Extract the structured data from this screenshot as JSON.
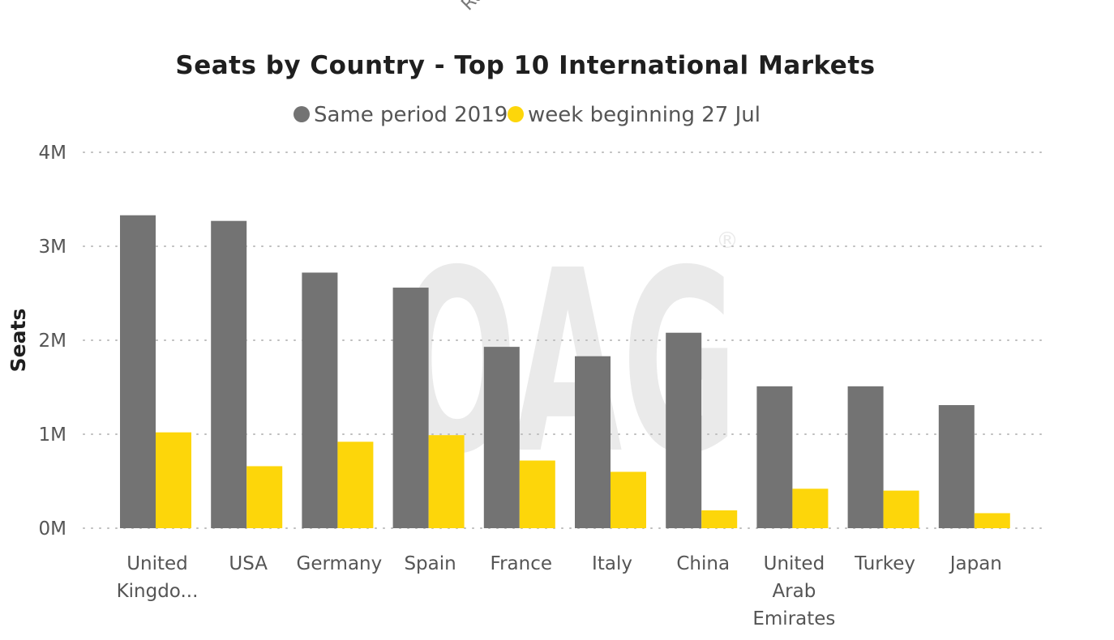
{
  "header": {
    "cut_off_text": "Ru"
  },
  "watermark": {
    "text": "OAG",
    "mark": "®"
  },
  "chart_data": {
    "type": "bar",
    "title": "Seats by Country - Top 10 International Markets",
    "xlabel": "",
    "ylabel": "Seats",
    "ylim": [
      0,
      4000000
    ],
    "yticks": [
      {
        "value": 0,
        "label": "0M"
      },
      {
        "value": 1000000,
        "label": "1M"
      },
      {
        "value": 2000000,
        "label": "2M"
      },
      {
        "value": 3000000,
        "label": "3M"
      },
      {
        "value": 4000000,
        "label": "4M"
      }
    ],
    "grid": true,
    "legend_position": "top-center",
    "categories": [
      [
        "United",
        "Kingdo..."
      ],
      [
        "USA"
      ],
      [
        "Germany"
      ],
      [
        "Spain"
      ],
      [
        "France"
      ],
      [
        "Italy"
      ],
      [
        "China"
      ],
      [
        "United",
        "Arab",
        "Emirates"
      ],
      [
        "Turkey"
      ],
      [
        "Japan"
      ]
    ],
    "series": [
      {
        "name": "Same period 2019",
        "color": "#737373",
        "values": [
          3330000,
          3270000,
          2720000,
          2560000,
          1930000,
          1830000,
          2080000,
          1510000,
          1510000,
          1310000
        ]
      },
      {
        "name": "week beginning 27 Jul",
        "color": "#FDD60A",
        "values": [
          1020000,
          660000,
          920000,
          990000,
          720000,
          600000,
          190000,
          420000,
          400000,
          160000
        ]
      }
    ]
  }
}
